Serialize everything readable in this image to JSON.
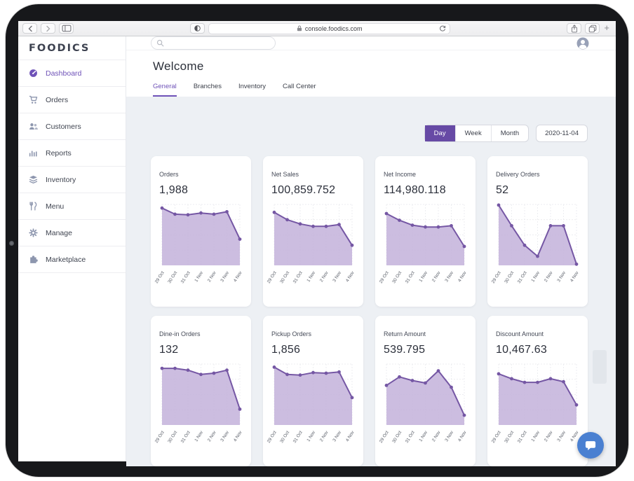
{
  "browser": {
    "url": "console.foodics.com"
  },
  "app": {
    "logo": "FOODICS",
    "topbar": {
      "search_placeholder": ""
    },
    "sidebar": [
      {
        "label": "Dashboard",
        "active": true
      },
      {
        "label": "Orders",
        "active": false
      },
      {
        "label": "Customers",
        "active": false
      },
      {
        "label": "Reports",
        "active": false
      },
      {
        "label": "Inventory",
        "active": false
      },
      {
        "label": "Menu",
        "active": false
      },
      {
        "label": "Manage",
        "active": false
      },
      {
        "label": "Marketplace",
        "active": false
      }
    ],
    "page": {
      "title": "Welcome",
      "tabs": [
        {
          "label": "General",
          "active": true
        },
        {
          "label": "Branches",
          "active": false
        },
        {
          "label": "Inventory",
          "active": false
        },
        {
          "label": "Call Center",
          "active": false
        }
      ]
    },
    "controls": {
      "periods": [
        {
          "label": "Day",
          "active": true
        },
        {
          "label": "Week",
          "active": false
        },
        {
          "label": "Month",
          "active": false
        }
      ],
      "date": "2020-11-04"
    }
  },
  "chart_data": {
    "type": "area",
    "categories": [
      "29 Oct",
      "30 Oct",
      "31 Oct",
      "1 Nov",
      "2 Nov",
      "3 Nov",
      "4 Nov"
    ],
    "line_color": "#7557a4",
    "fill_color": "#c3b2da",
    "grid": true,
    "cards": [
      {
        "label": "Orders",
        "value": "1,988",
        "trend": [
          0.94,
          0.84,
          0.83,
          0.86,
          0.84,
          0.88,
          0.43
        ]
      },
      {
        "label": "Net Sales",
        "value": "100,859.752",
        "trend": [
          0.87,
          0.75,
          0.68,
          0.64,
          0.64,
          0.67,
          0.33
        ]
      },
      {
        "label": "Net Income",
        "value": "114,980.118",
        "trend": [
          0.85,
          0.74,
          0.66,
          0.63,
          0.63,
          0.65,
          0.31
        ]
      },
      {
        "label": "Delivery Orders",
        "value": "52",
        "trend": [
          0.99,
          0.65,
          0.33,
          0.15,
          0.65,
          0.65,
          0.02
        ]
      },
      {
        "label": "Dine-in Orders",
        "value": "132",
        "trend": [
          0.93,
          0.93,
          0.9,
          0.83,
          0.85,
          0.9,
          0.26
        ]
      },
      {
        "label": "Pickup Orders",
        "value": "1,856",
        "trend": [
          0.95,
          0.83,
          0.82,
          0.86,
          0.85,
          0.87,
          0.45
        ]
      },
      {
        "label": "Return Amount",
        "value": "539.795",
        "trend": [
          0.65,
          0.79,
          0.73,
          0.69,
          0.89,
          0.62,
          0.16
        ]
      },
      {
        "label": "Discount Amount",
        "value": "10,467.63",
        "trend": [
          0.84,
          0.76,
          0.7,
          0.7,
          0.76,
          0.71,
          0.33
        ]
      }
    ]
  }
}
